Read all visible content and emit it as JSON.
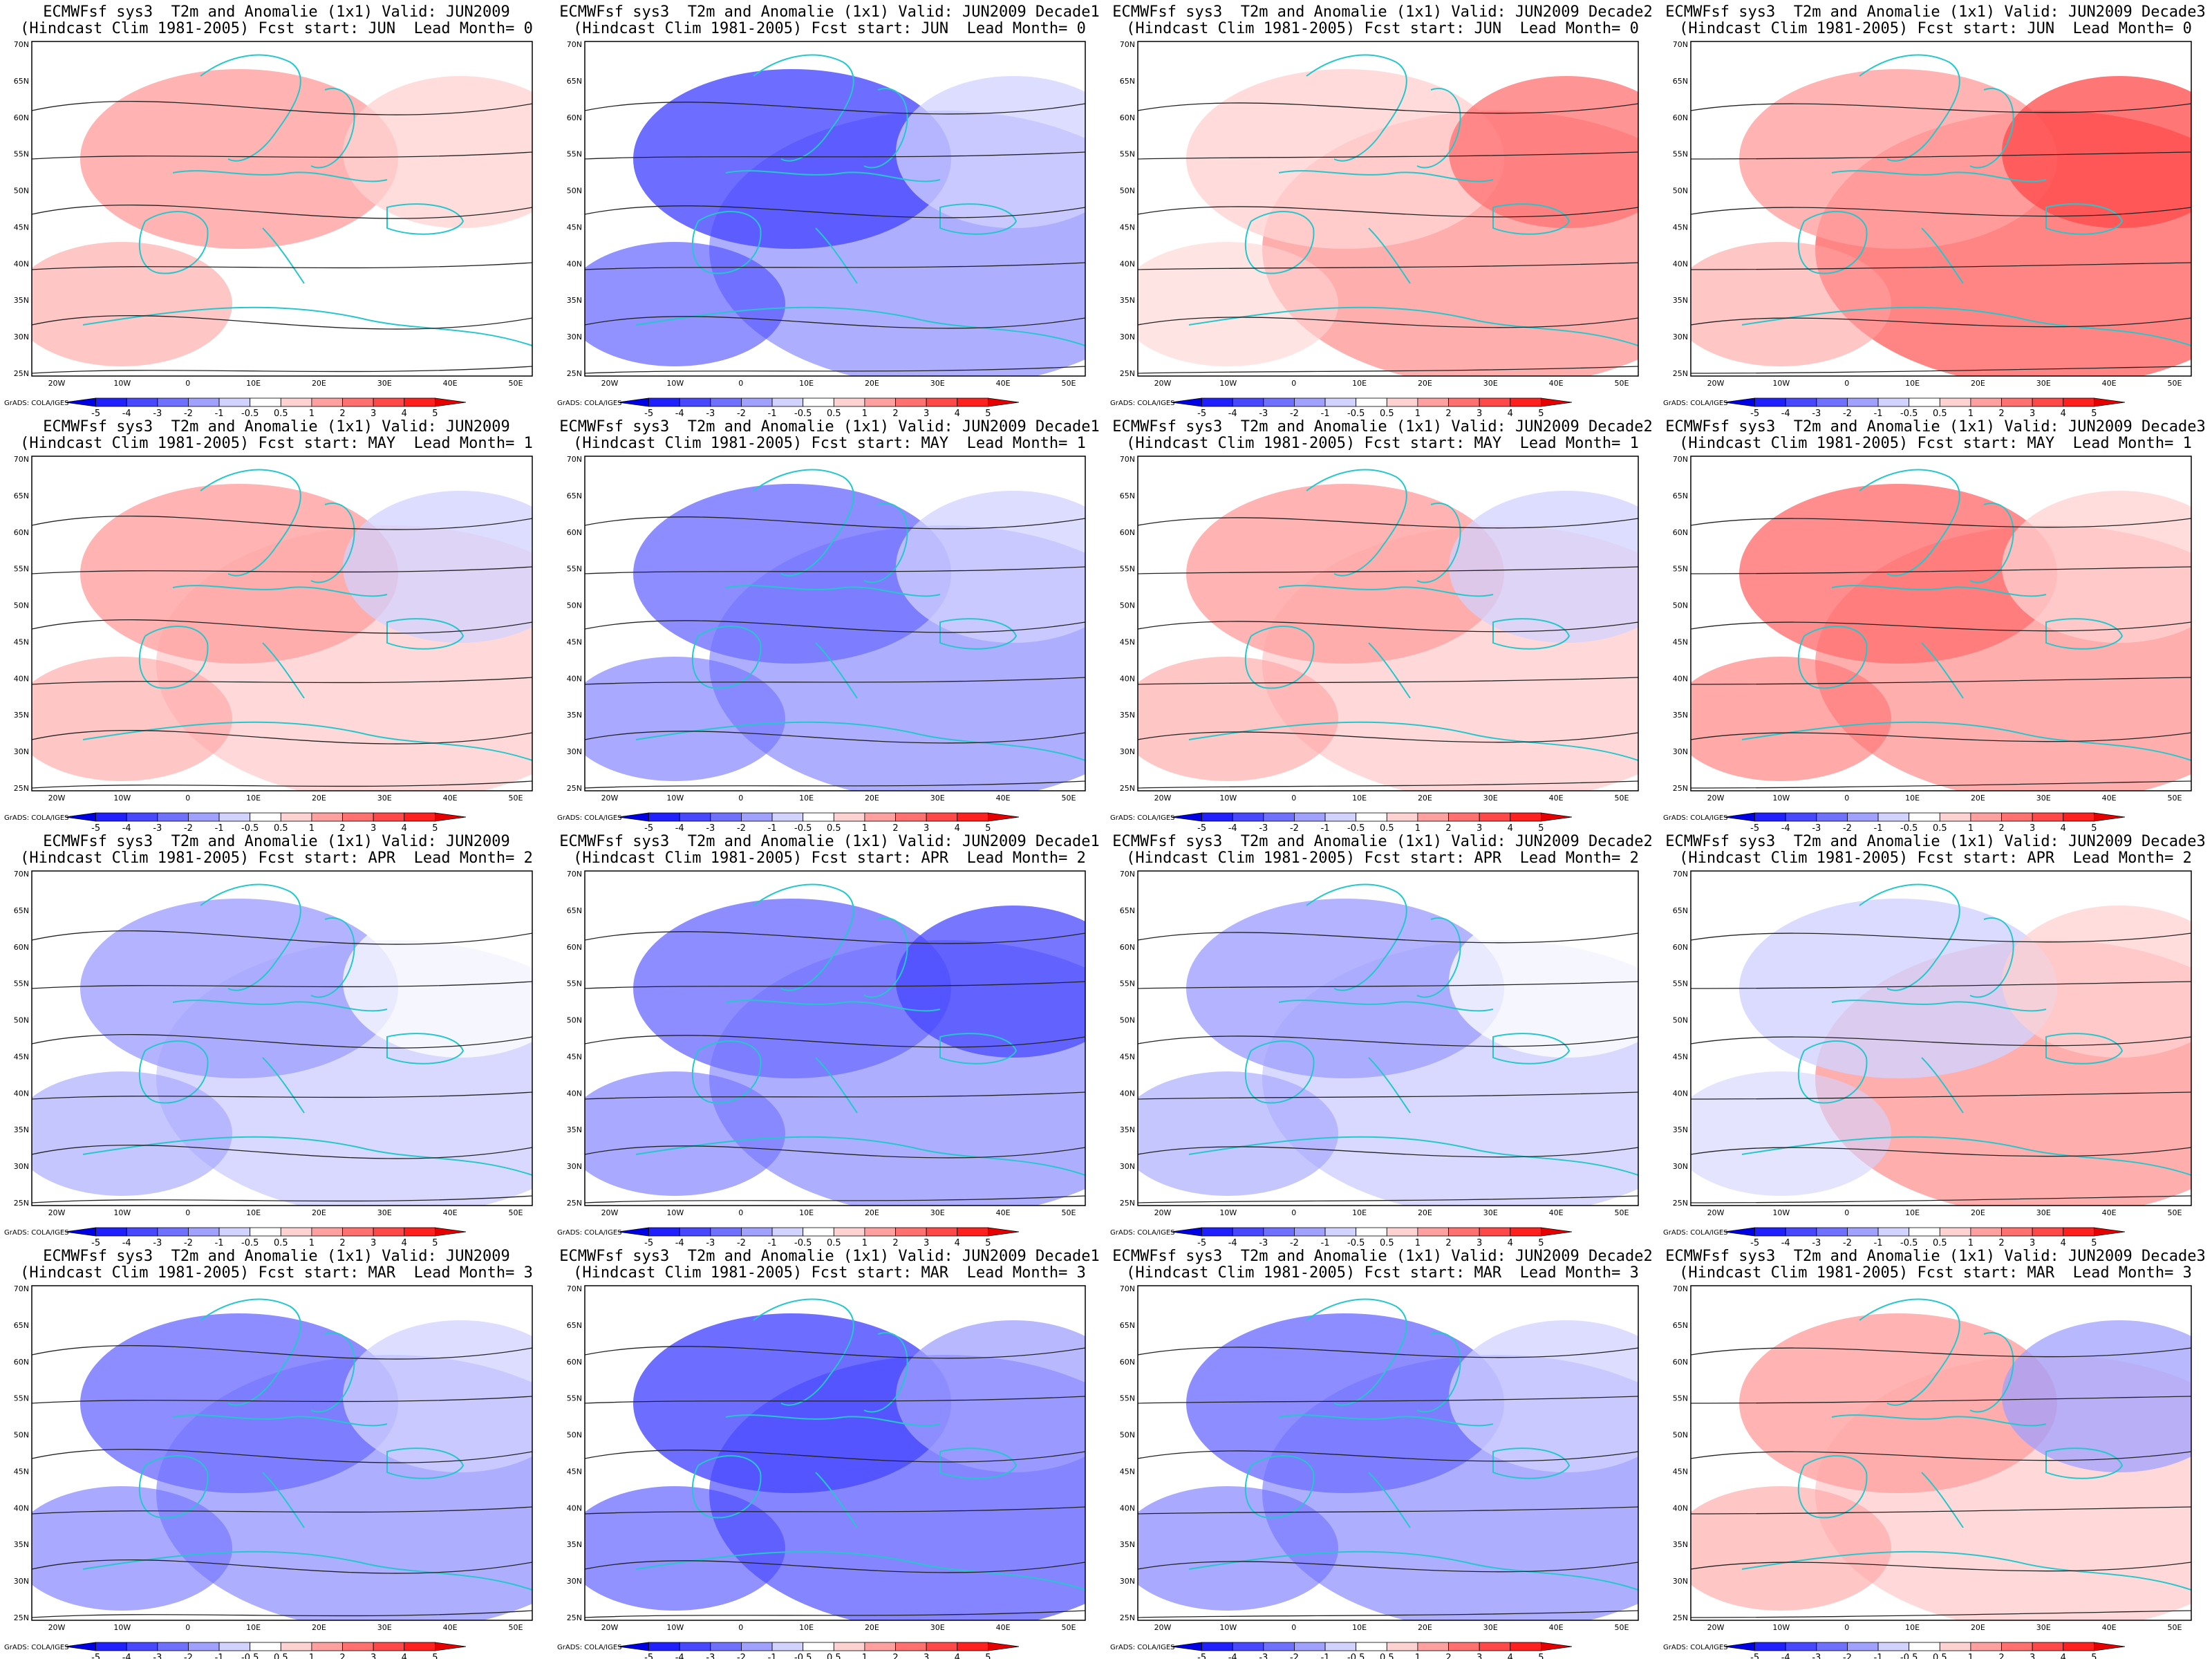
{
  "panel_title_prefix": "ECMWFsf sys3  T2m and Anomalie (1x1) Valid: ",
  "panel_subtitle_prefix": "(Hindcast Clim 1981-2005) Fcst start: ",
  "lead_label": "Lead Month=",
  "credit": "GrADS: COLA/IGES",
  "lon_ticks": [
    "20W",
    "10W",
    "0",
    "10E",
    "20E",
    "30E",
    "40E",
    "50E"
  ],
  "lat_ticks": [
    "70N",
    "65N",
    "60N",
    "55N",
    "50N",
    "45N",
    "40N",
    "35N",
    "30N",
    "25N"
  ],
  "colorbar": {
    "labels": [
      "-5",
      "-4",
      "-3",
      "-2",
      "-1",
      "-0.5",
      "0.5",
      "1",
      "2",
      "3",
      "4",
      "5"
    ],
    "colors": [
      "#0000e6",
      "#2020ff",
      "#4848ff",
      "#7070ff",
      "#a0a0ff",
      "#d2d2ff",
      "#ffffff",
      "#ffd2d2",
      "#ffa0a0",
      "#ff7070",
      "#ff4848",
      "#ff2020",
      "#e60000"
    ]
  },
  "colors": {
    "land": "#24c8cc",
    "contour": "#222222",
    "frame": "#000000"
  },
  "panels": [
    {
      "valid": "JUN2009",
      "fcst_start": "JUN",
      "lead": "0"
    },
    {
      "valid": "JUN2009 Decade1",
      "fcst_start": "JUN",
      "lead": "0"
    },
    {
      "valid": "JUN2009 Decade2",
      "fcst_start": "JUN",
      "lead": "0"
    },
    {
      "valid": "JUN2009 Decade3",
      "fcst_start": "JUN",
      "lead": "0"
    },
    {
      "valid": "JUN2009",
      "fcst_start": "MAY",
      "lead": "1"
    },
    {
      "valid": "JUN2009 Decade1",
      "fcst_start": "MAY",
      "lead": "1"
    },
    {
      "valid": "JUN2009 Decade2",
      "fcst_start": "MAY",
      "lead": "1"
    },
    {
      "valid": "JUN2009 Decade3",
      "fcst_start": "MAY",
      "lead": "1"
    },
    {
      "valid": "JUN2009",
      "fcst_start": "APR",
      "lead": "2"
    },
    {
      "valid": "JUN2009 Decade1",
      "fcst_start": "APR",
      "lead": "2"
    },
    {
      "valid": "JUN2009 Decade2",
      "fcst_start": "APR",
      "lead": "2"
    },
    {
      "valid": "JUN2009 Decade3",
      "fcst_start": "APR",
      "lead": "2"
    },
    {
      "valid": "JUN2009",
      "fcst_start": "MAR",
      "lead": "3"
    },
    {
      "valid": "JUN2009 Decade1",
      "fcst_start": "MAR",
      "lead": "3"
    },
    {
      "valid": "JUN2009 Decade2",
      "fcst_start": "MAR",
      "lead": "3"
    },
    {
      "valid": "JUN2009 Decade3",
      "fcst_start": "MAR",
      "lead": "3"
    }
  ]
}
